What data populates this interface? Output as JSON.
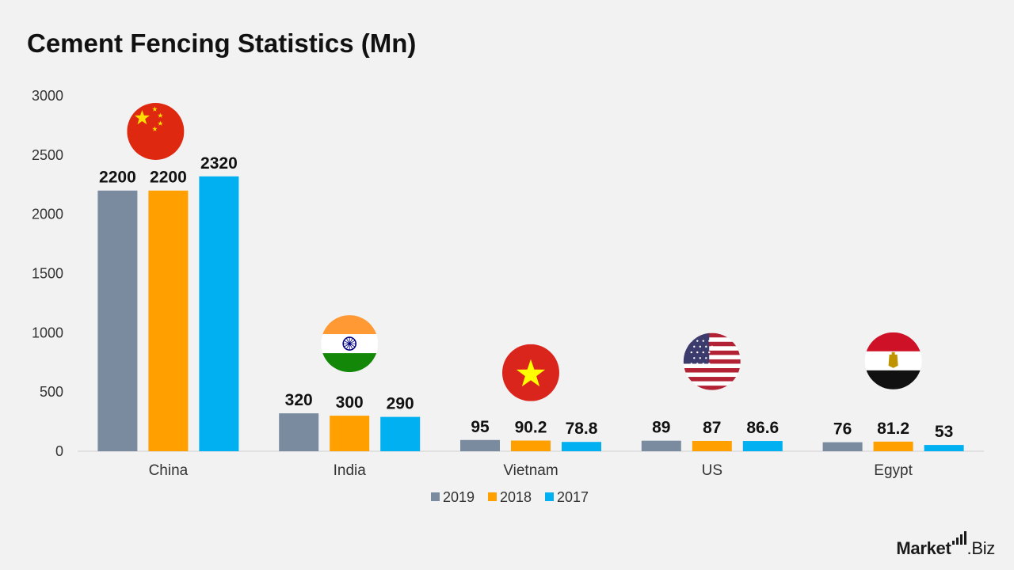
{
  "title": "Cement Fencing Statistics (Mn)",
  "logo": {
    "main": "Market",
    "suffix": ".Biz"
  },
  "chart_data": {
    "type": "bar",
    "title": "Cement Fencing Statistics (Mn)",
    "categories": [
      "China",
      "India",
      "Vietnam",
      "US",
      "Egypt"
    ],
    "series": [
      {
        "name": "2019",
        "color": "#7a8ba0",
        "values": [
          2200,
          320,
          95,
          89,
          76
        ],
        "labels": [
          "2200",
          "320",
          "95",
          "89",
          "76"
        ]
      },
      {
        "name": "2018",
        "color": "#ffa000",
        "values": [
          2200,
          300,
          90.2,
          87,
          81.2
        ],
        "labels": [
          "2200",
          "300",
          "90.2",
          "87",
          "81.2"
        ]
      },
      {
        "name": "2017",
        "color": "#00b0f0",
        "values": [
          2320,
          290,
          78.8,
          86.6,
          53
        ],
        "labels": [
          "2320",
          "290",
          "78.8",
          "86.6",
          "53"
        ]
      }
    ],
    "ylim": [
      0,
      3000
    ],
    "yticks": [
      0,
      500,
      1000,
      1500,
      2000,
      2500,
      3000
    ],
    "grid": false,
    "legend_position": "bottom",
    "flag_icons": [
      "china-flag-icon",
      "india-flag-icon",
      "vietnam-flag-icon",
      "us-flag-icon",
      "egypt-flag-icon"
    ]
  }
}
